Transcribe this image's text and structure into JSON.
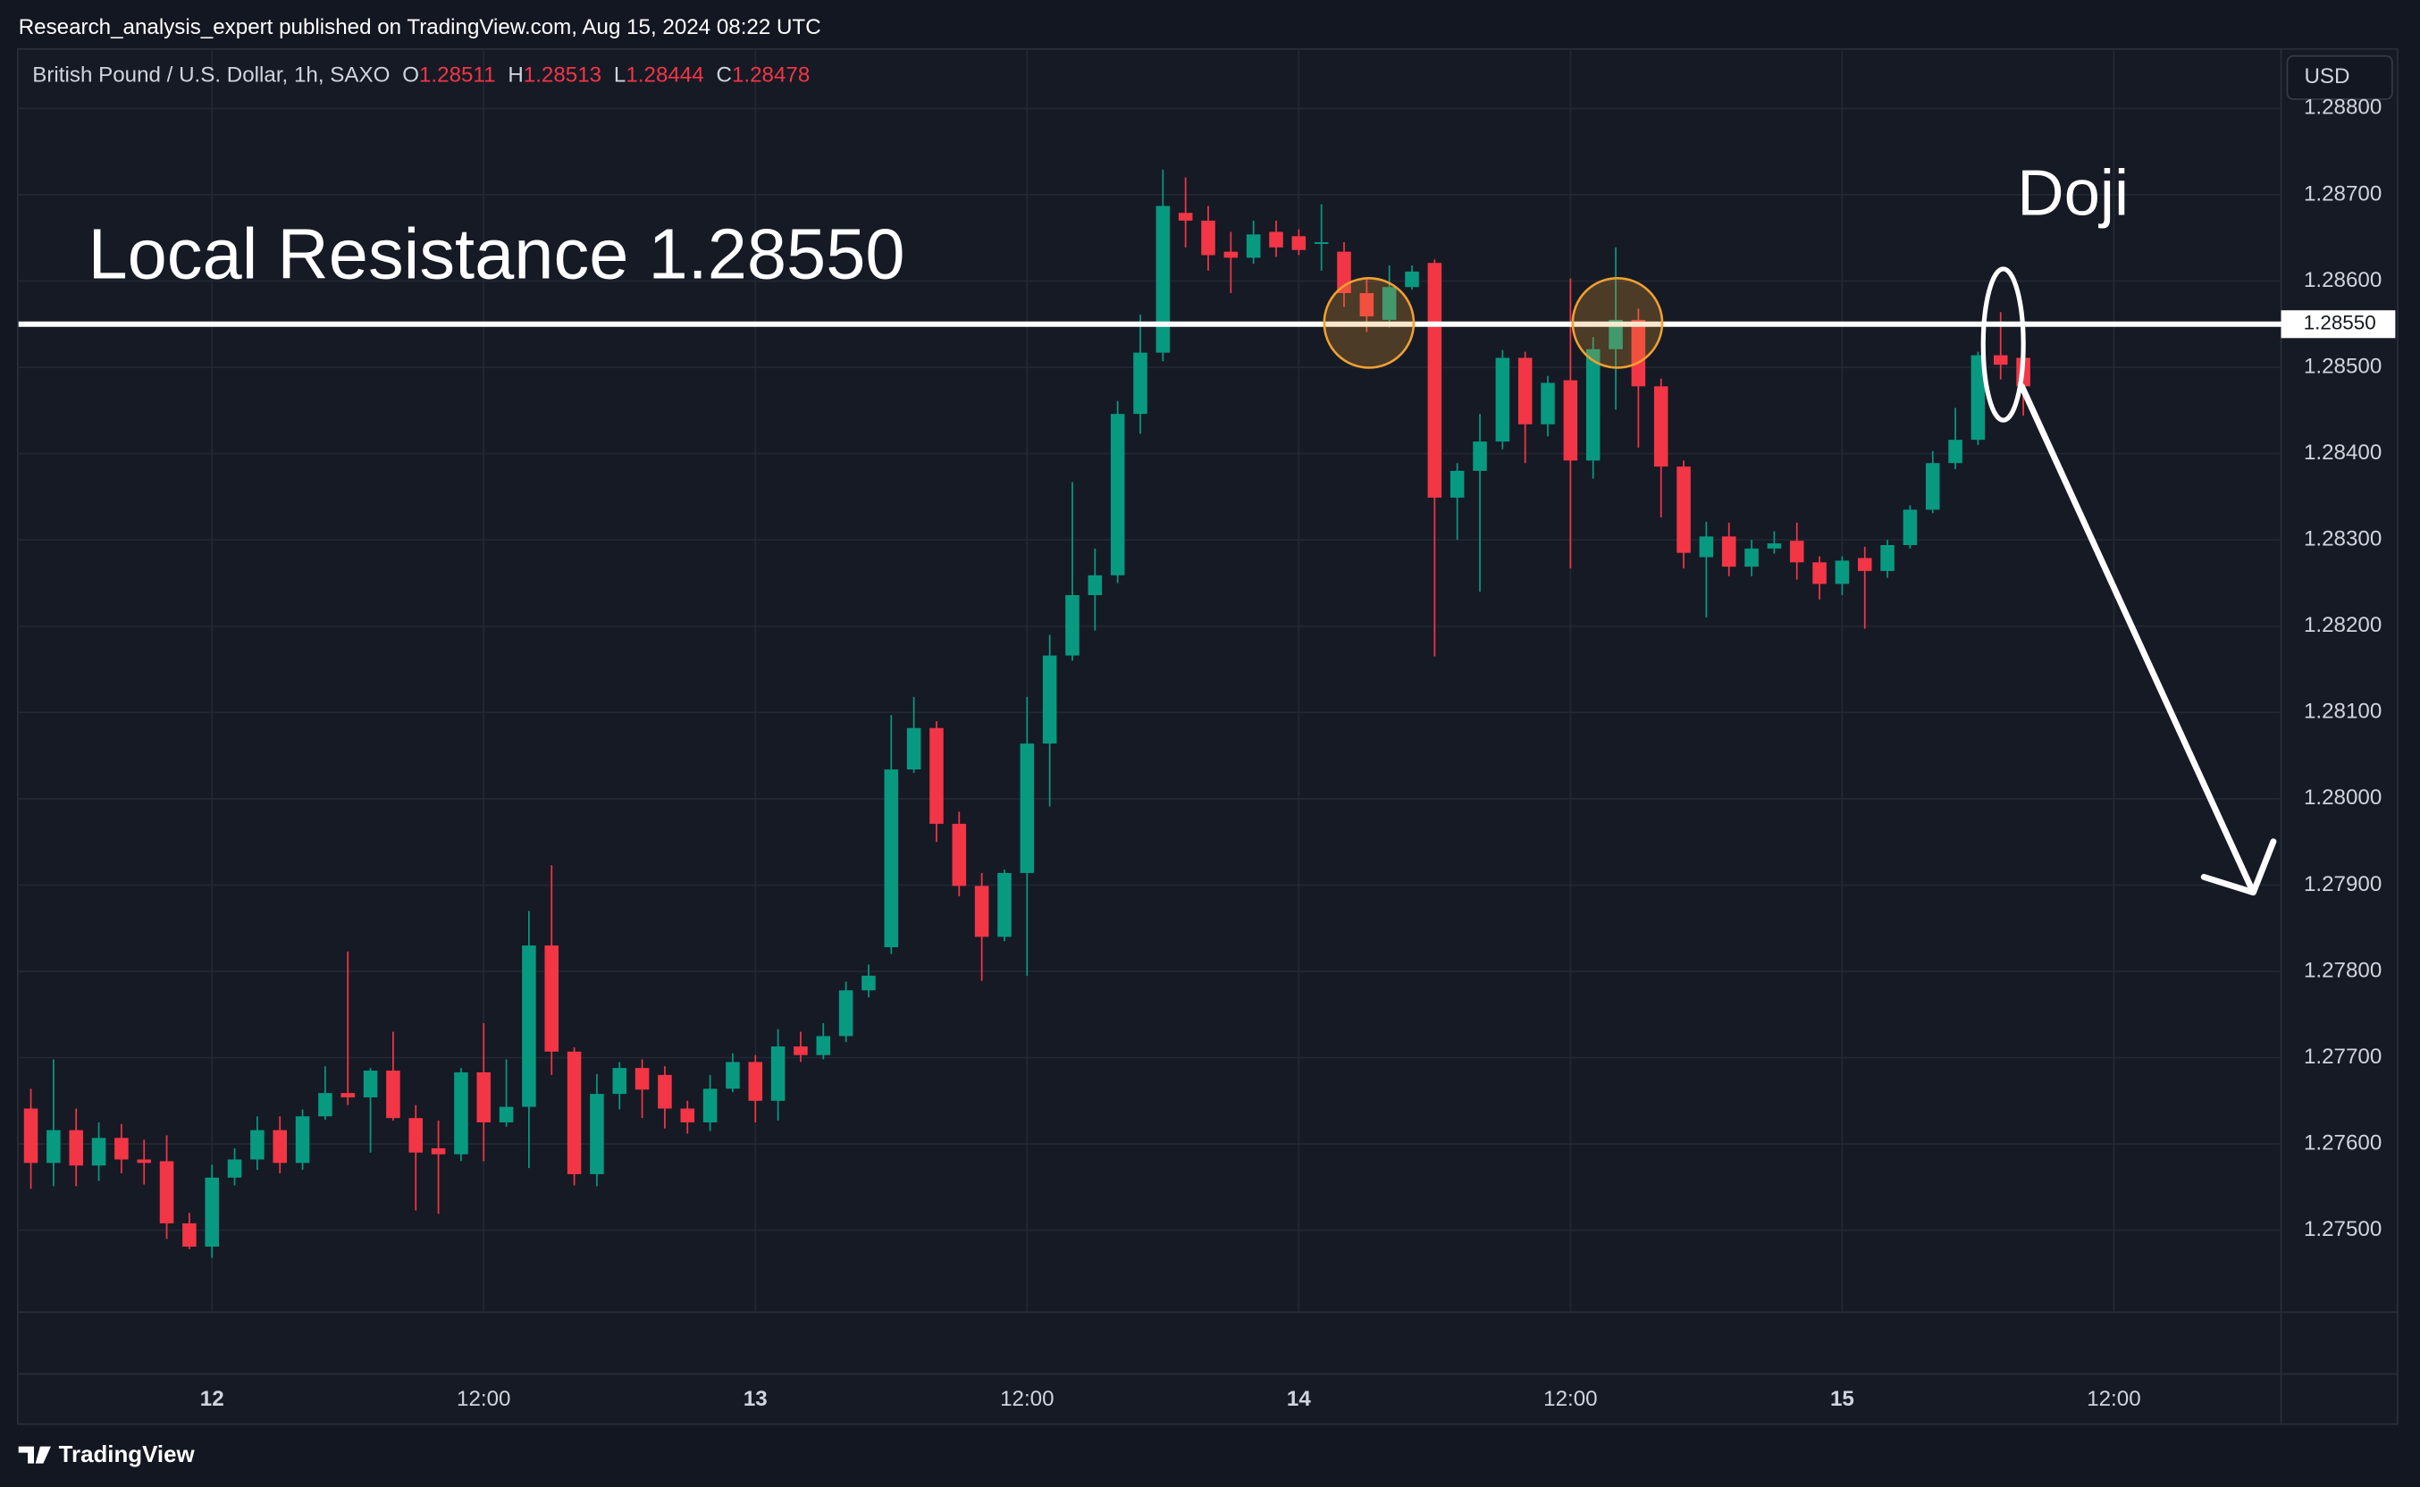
{
  "header": {
    "publisher": "Research_analysis_expert published on TradingView.com, Aug 15, 2024 08:22 UTC",
    "currency": "USD",
    "brand": "TradingView"
  },
  "chart_data": {
    "type": "candlestick",
    "title": "British Pound / U.S. Dollar, 1h, SAXO",
    "ohlc_keys": [
      "O",
      "H",
      "L",
      "C"
    ],
    "categories": [
      null,
      null,
      null,
      null,
      null,
      null,
      null,
      null,
      "12",
      null,
      null,
      null,
      null,
      null,
      null,
      null,
      null,
      null,
      null,
      null,
      "12:00",
      null,
      null,
      null,
      null,
      null,
      null,
      null,
      null,
      null,
      null,
      null,
      "13",
      null,
      null,
      null,
      null,
      null,
      null,
      null,
      null,
      null,
      null,
      null,
      "12:00",
      null,
      null,
      null,
      null,
      null,
      null,
      null,
      null,
      null,
      null,
      null,
      "14",
      null,
      null,
      null,
      null,
      null,
      null,
      null,
      null,
      null,
      null,
      null,
      "12:00",
      null,
      null,
      null,
      null,
      null,
      null,
      null,
      null,
      null,
      null,
      null,
      "15",
      null,
      null,
      null,
      null,
      null,
      null,
      null,
      null,
      null,
      null,
      null,
      "12:00",
      null,
      null,
      null,
      null,
      null,
      null,
      null
    ],
    "open": [
      1.27641,
      1.27578,
      1.27616,
      1.27575,
      1.27607,
      1.27582,
      1.2758,
      1.27508,
      1.27481,
      1.27561,
      1.27582,
      1.27616,
      1.27578,
      1.27632,
      1.27659,
      1.27654,
      1.27685,
      1.2763,
      1.27595,
      1.27588,
      1.27683,
      1.27625,
      1.27643,
      1.2783,
      1.27707,
      1.27565,
      1.27658,
      1.27688,
      1.2768,
      1.27641,
      1.27625,
      1.27664,
      1.27695,
      1.2765,
      1.27713,
      1.27703,
      1.27725,
      1.27778,
      1.27828,
      1.28034,
      1.28082,
      1.27971,
      1.27899,
      1.2784,
      1.27914,
      1.28064,
      1.28166,
      1.28236,
      1.28259,
      1.28446,
      1.28517,
      1.28679,
      1.2867,
      1.28634,
      1.28627,
      1.28657,
      1.28652,
      1.28643,
      1.28634,
      1.28586,
      1.28555,
      1.28593,
      1.28621,
      1.28349,
      1.2838,
      1.28414,
      1.28511,
      1.28434,
      1.28485,
      1.28392,
      1.28521,
      1.28555,
      1.28478,
      1.28385,
      1.2828,
      1.28304,
      1.28269,
      1.2829,
      1.28299,
      1.28274,
      1.28249,
      1.28279,
      1.28264,
      1.28294,
      1.28335,
      1.28389,
      1.28416,
      1.28514,
      1.28511,
      null,
      null,
      null,
      null,
      null,
      null,
      null,
      null,
      null,
      null,
      null
    ],
    "high": [
      1.27664,
      1.27698,
      1.27641,
      1.27625,
      1.27623,
      1.27605,
      1.2761,
      1.2752,
      1.27576,
      1.27595,
      1.27632,
      1.27632,
      1.2764,
      1.2769,
      1.27823,
      1.27688,
      1.2773,
      1.27645,
      1.27627,
      1.27688,
      1.2774,
      1.27698,
      1.2787,
      1.27923,
      1.27712,
      1.27681,
      1.27695,
      1.27698,
      1.2769,
      1.2765,
      1.2768,
      1.27705,
      1.27703,
      1.27733,
      1.2773,
      1.2774,
      1.27788,
      1.27808,
      1.28097,
      1.28118,
      1.2809,
      1.27985,
      1.27914,
      1.27918,
      1.28118,
      1.2819,
      1.28367,
      1.2829,
      1.28461,
      1.28561,
      1.28729,
      1.2872,
      1.28687,
      1.28657,
      1.2867,
      1.2867,
      1.2866,
      1.28689,
      1.28645,
      1.28603,
      1.28618,
      1.28618,
      1.28625,
      1.28389,
      1.28446,
      1.2852,
      1.28518,
      1.2849,
      1.28603,
      1.28535,
      1.28639,
      1.28568,
      1.28487,
      1.28392,
      1.28321,
      1.2832,
      1.283,
      1.2831,
      1.2832,
      1.28281,
      1.28281,
      1.28292,
      1.283,
      1.2834,
      1.28403,
      1.28453,
      1.28518,
      1.28564,
      1.28513,
      null,
      null,
      null,
      null,
      null,
      null,
      null,
      null,
      null,
      null,
      null
    ],
    "low": [
      1.27548,
      1.27551,
      1.27551,
      1.27557,
      1.27566,
      1.27553,
      1.2749,
      1.27478,
      1.27468,
      1.27552,
      1.2757,
      1.27566,
      1.2757,
      1.27628,
      1.27645,
      1.2759,
      1.27627,
      1.27523,
      1.27519,
      1.2758,
      1.2758,
      1.2762,
      1.27572,
      1.2768,
      1.27552,
      1.27551,
      1.2764,
      1.2763,
      1.27618,
      1.27612,
      1.27615,
      1.2766,
      1.27625,
      1.27627,
      1.27695,
      1.27698,
      1.27718,
      1.2777,
      1.2782,
      1.2803,
      1.2795,
      1.27887,
      1.27789,
      1.27835,
      1.27795,
      1.27991,
      1.2816,
      1.28195,
      1.2825,
      1.28423,
      1.28507,
      1.28639,
      1.28612,
      1.28586,
      1.2862,
      1.28628,
      1.2863,
      1.28612,
      1.2857,
      1.28541,
      1.28546,
      1.2859,
      1.28165,
      1.283,
      1.2824,
      1.28405,
      1.28389,
      1.2842,
      1.28267,
      1.28371,
      1.28451,
      1.28407,
      1.28326,
      1.28267,
      1.2821,
      1.28258,
      1.28258,
      1.28284,
      1.28254,
      1.28231,
      1.28236,
      1.28197,
      1.28256,
      1.2829,
      1.28331,
      1.28382,
      1.2841,
      1.28486,
      1.28444,
      null,
      null,
      null,
      null,
      null,
      null,
      null,
      null,
      null,
      null,
      null
    ],
    "close": [
      1.27578,
      1.27616,
      1.27575,
      1.27607,
      1.27582,
      1.27578,
      1.27508,
      1.27481,
      1.27561,
      1.27582,
      1.27616,
      1.27578,
      1.27632,
      1.27659,
      1.27654,
      1.27685,
      1.2763,
      1.2759,
      1.27588,
      1.27683,
      1.27625,
      1.27643,
      1.2783,
      1.27707,
      1.27565,
      1.27658,
      1.27688,
      1.27663,
      1.27641,
      1.27625,
      1.27664,
      1.27695,
      1.2765,
      1.27713,
      1.27703,
      1.27725,
      1.27778,
      1.27795,
      1.28034,
      1.28082,
      1.27971,
      1.27899,
      1.2784,
      1.27914,
      1.28064,
      1.28166,
      1.28236,
      1.28259,
      1.28446,
      1.28517,
      1.28687,
      1.2867,
      1.2863,
      1.28627,
      1.28654,
      1.28639,
      1.28636,
      1.28645,
      1.28586,
      1.28559,
      1.28593,
      1.28611,
      1.28349,
      1.2838,
      1.28414,
      1.28511,
      1.28434,
      1.28482,
      1.28392,
      1.28521,
      1.28555,
      1.28478,
      1.28385,
      1.28285,
      1.28304,
      1.28269,
      1.2829,
      1.28296,
      1.28274,
      1.28249,
      1.28276,
      1.28264,
      1.28294,
      1.28335,
      1.28389,
      1.28416,
      1.28514,
      1.28503,
      1.28478,
      null,
      null,
      null,
      null,
      null,
      null,
      null,
      null,
      null,
      null,
      null
    ],
    "up_color": "#089981",
    "down_color": "#f23645",
    "ylim": [
      1.27405,
      1.28868
    ],
    "yticks": [
      {
        "value": 1.275,
        "label": "1.27500"
      },
      {
        "value": 1.276,
        "label": "1.27600"
      },
      {
        "value": 1.277,
        "label": "1.27700"
      },
      {
        "value": 1.278,
        "label": "1.27800"
      },
      {
        "value": 1.279,
        "label": "1.27900"
      },
      {
        "value": 1.28,
        "label": "1.28000"
      },
      {
        "value": 1.281,
        "label": "1.28100"
      },
      {
        "value": 1.282,
        "label": "1.28200"
      },
      {
        "value": 1.283,
        "label": "1.28300"
      },
      {
        "value": 1.284,
        "label": "1.28400"
      },
      {
        "value": 1.285,
        "label": "1.28500"
      },
      {
        "value": 1.286,
        "label": "1.28600"
      },
      {
        "value": 1.287,
        "label": "1.28700"
      },
      {
        "value": 1.288,
        "label": "1.28800"
      }
    ],
    "grid": true,
    "resistance": {
      "value": 1.2855,
      "label": "1.28550"
    },
    "annotations": [
      "Local Resistance 1.28550",
      "Doji"
    ]
  }
}
